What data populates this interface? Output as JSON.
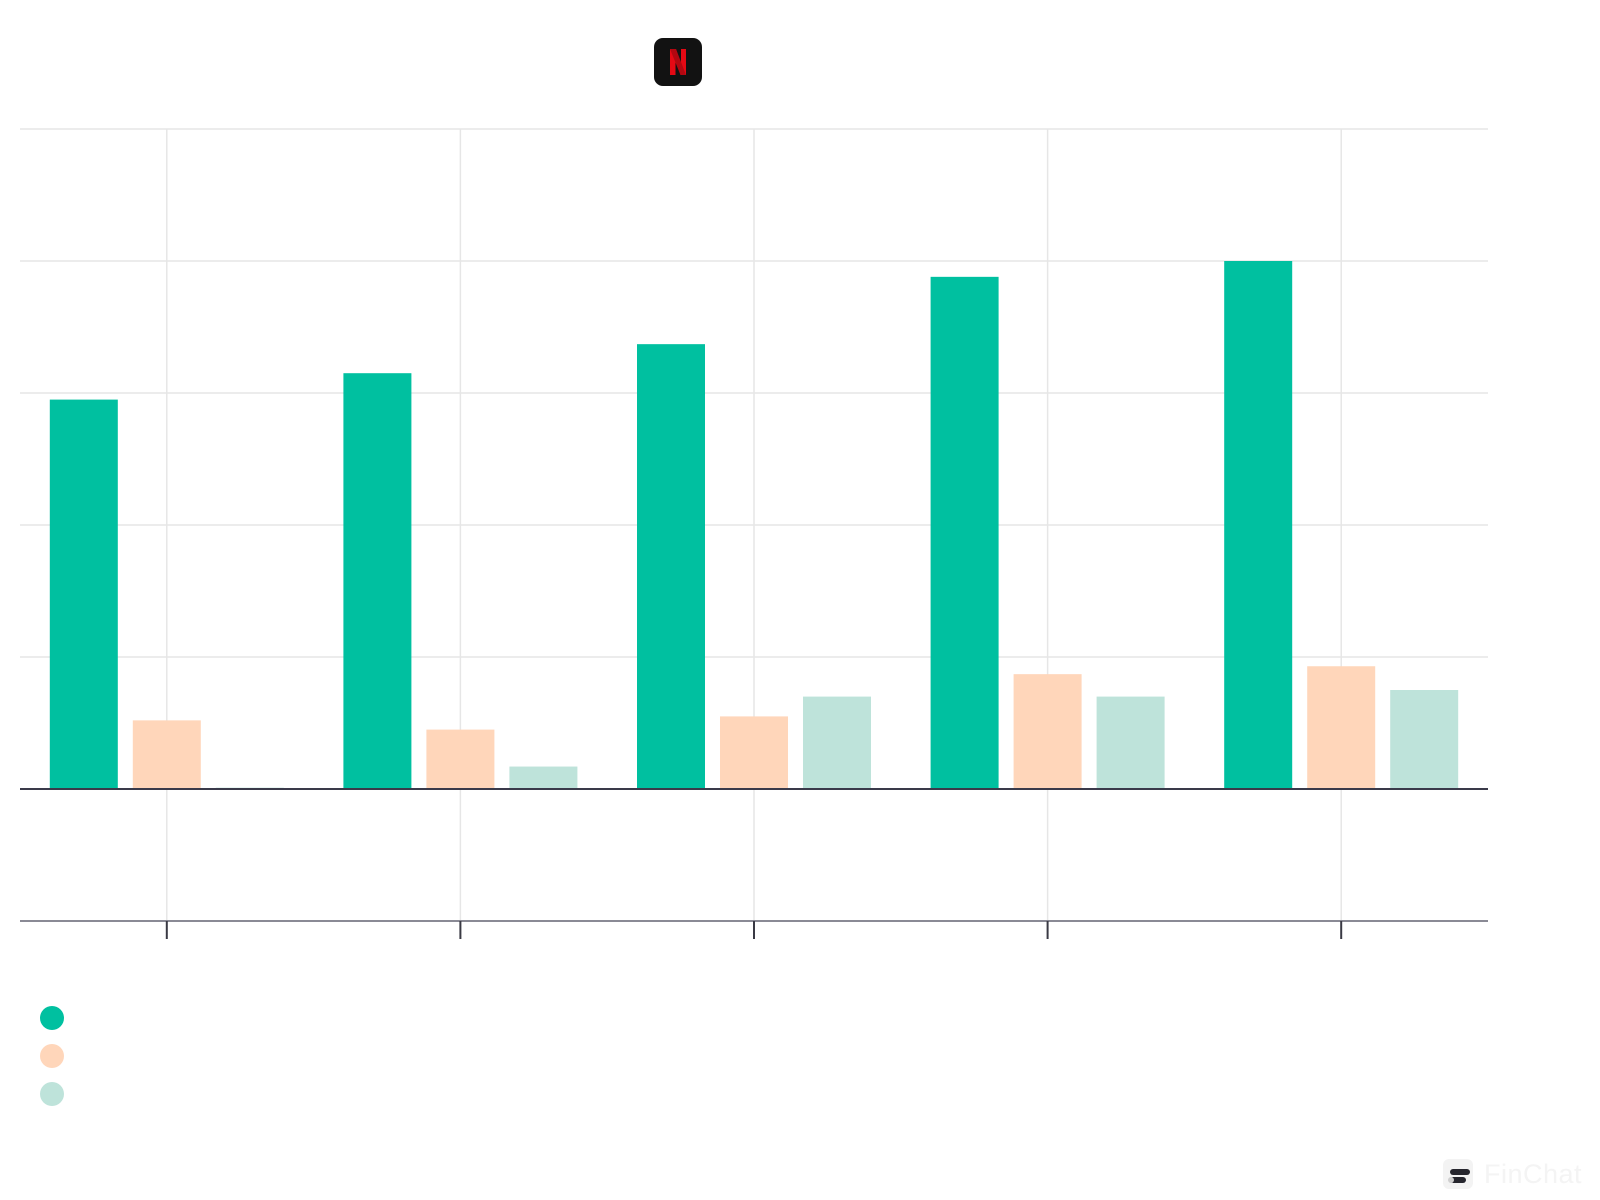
{
  "header": {
    "logo_icon": "netflix-logo-icon",
    "logo_letter": "N"
  },
  "colors": {
    "series_1": "#00C0A0",
    "series_2": "#FFD6BA",
    "series_3": "#BEE3DA",
    "grid": "#E6E6E6",
    "axis": "#8A8A95",
    "zero_line": "#3A3A4A",
    "logo_bg": "#121212",
    "logo_red": "#E50914"
  },
  "chart_data": {
    "type": "bar",
    "categories": [
      "",
      "",
      "",
      "",
      ""
    ],
    "series": [
      {
        "values": [
          2.95,
          3.15,
          3.37,
          3.88,
          4.0
        ]
      },
      {
        "values": [
          0.52,
          0.45,
          0.55,
          0.87,
          0.93
        ]
      },
      {
        "values": [
          0.01,
          0.17,
          0.7,
          0.7,
          0.75
        ]
      }
    ],
    "ylim": [
      -1,
      5
    ],
    "y_ticks": [
      -1,
      0,
      1,
      2,
      3,
      4,
      5
    ],
    "grid": true,
    "legend": "bottom-left"
  },
  "legend": {
    "items": [
      {
        "label": "",
        "color": "#00C0A0"
      },
      {
        "label": "",
        "color": "#FFD6BA"
      },
      {
        "label": "",
        "color": "#BEE3DA"
      }
    ]
  },
  "watermark": {
    "text": "FinChat",
    "icon": "finchat-logo-icon"
  }
}
